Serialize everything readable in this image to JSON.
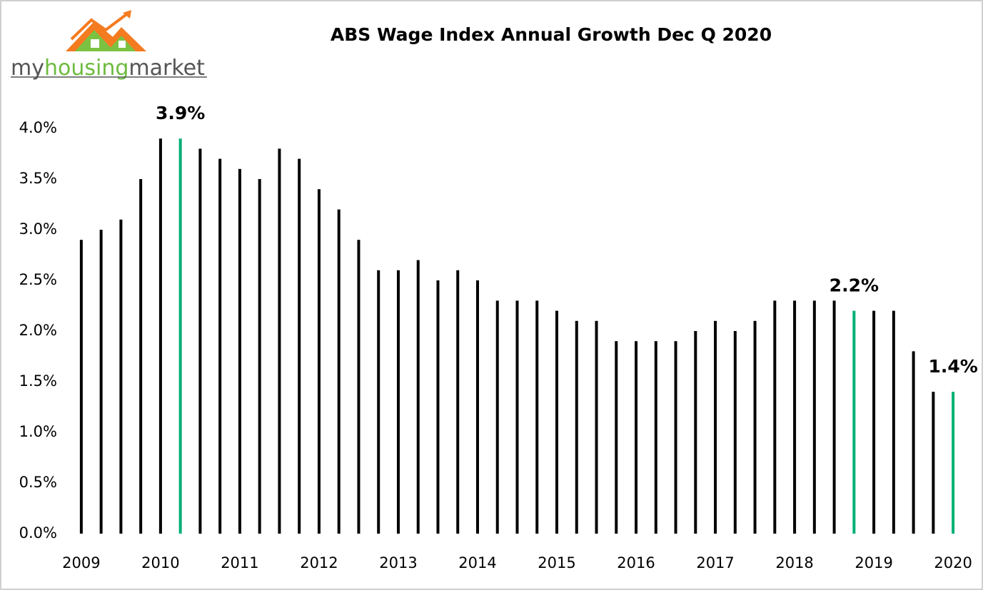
{
  "logo": {
    "parts": [
      "my",
      "housing",
      "market"
    ]
  },
  "chart_data": {
    "type": "bar",
    "title": "ABS Wage Index Annual Growth Dec Q 2020",
    "categories": [
      "2009",
      null,
      null,
      null,
      "2010",
      null,
      null,
      null,
      "2011",
      null,
      null,
      null,
      "2012",
      null,
      null,
      null,
      "2013",
      null,
      null,
      null,
      "2014",
      null,
      null,
      null,
      "2015",
      null,
      null,
      null,
      "2016",
      null,
      null,
      null,
      "2017",
      null,
      null,
      null,
      "2018",
      null,
      null,
      null,
      "2019",
      null,
      null,
      null,
      "2020"
    ],
    "values": [
      2.9,
      3.0,
      3.1,
      3.5,
      3.9,
      3.9,
      3.8,
      3.7,
      3.6,
      3.5,
      3.8,
      3.7,
      3.4,
      3.2,
      2.9,
      2.6,
      2.6,
      2.7,
      2.5,
      2.6,
      2.5,
      2.3,
      2.3,
      2.3,
      2.2,
      2.1,
      2.1,
      1.9,
      1.9,
      1.9,
      1.9,
      2.0,
      2.1,
      2.0,
      2.1,
      2.3,
      2.3,
      2.3,
      2.3,
      2.2,
      2.2,
      2.2,
      1.8,
      1.4,
      1.4
    ],
    "value_labels": [
      null,
      null,
      null,
      null,
      null,
      "3.9%",
      null,
      null,
      null,
      null,
      null,
      null,
      null,
      null,
      null,
      null,
      null,
      null,
      null,
      null,
      null,
      null,
      null,
      null,
      null,
      null,
      null,
      null,
      null,
      null,
      null,
      null,
      null,
      null,
      null,
      null,
      null,
      null,
      null,
      "2.2%",
      null,
      null,
      null,
      null,
      "1.4%"
    ],
    "color": "#000000",
    "highlight_color": "#00b074",
    "highlighted": [
      5,
      39,
      44
    ],
    "ylim": [
      0,
      4.0
    ],
    "yticks": [
      {
        "value": 0,
        "label": "0.0%"
      },
      {
        "value": 0.5,
        "label": "0.5%"
      },
      {
        "value": 1.0,
        "label": "1.0%"
      },
      {
        "value": 1.5,
        "label": "1.5%"
      },
      {
        "value": 2.0,
        "label": "2.0%"
      },
      {
        "value": 2.5,
        "label": "2.5%"
      },
      {
        "value": 3.0,
        "label": "3.0%"
      },
      {
        "value": 3.5,
        "label": "3.5%"
      },
      {
        "value": 4.0,
        "label": "4.0%"
      }
    ],
    "grid": false
  }
}
